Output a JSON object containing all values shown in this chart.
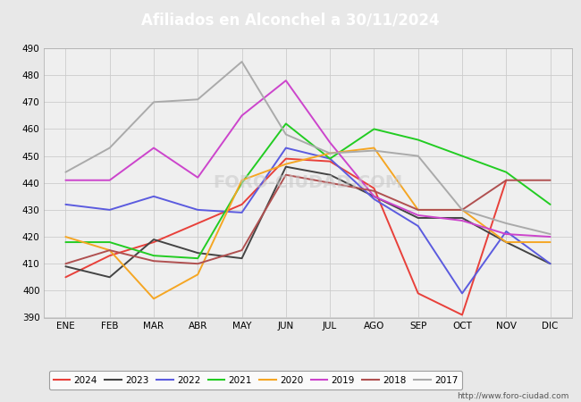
{
  "title": "Afiliados en Alconchel a 30/11/2024",
  "title_color": "white",
  "title_bg_color": "#5b7fc4",
  "xlabel": "",
  "ylabel": "",
  "ylim": [
    390,
    490
  ],
  "yticks": [
    390,
    400,
    410,
    420,
    430,
    440,
    450,
    460,
    470,
    480,
    490
  ],
  "months": [
    "ENE",
    "FEB",
    "MAR",
    "ABR",
    "MAY",
    "JUN",
    "JUL",
    "AGO",
    "SEP",
    "OCT",
    "NOV",
    "DIC"
  ],
  "footer": "http://www.foro-ciudad.com",
  "series": {
    "2024": {
      "color": "#e8403a",
      "linewidth": 1.4,
      "values": [
        405,
        413,
        418,
        425,
        432,
        449,
        448,
        438,
        399,
        391,
        441,
        null
      ]
    },
    "2023": {
      "color": "#444444",
      "linewidth": 1.4,
      "values": [
        409,
        405,
        419,
        414,
        412,
        446,
        443,
        435,
        427,
        427,
        418,
        410
      ]
    },
    "2022": {
      "color": "#5b5bdf",
      "linewidth": 1.4,
      "values": [
        432,
        430,
        435,
        430,
        429,
        453,
        449,
        434,
        424,
        399,
        422,
        410
      ]
    },
    "2021": {
      "color": "#22cc22",
      "linewidth": 1.4,
      "values": [
        418,
        418,
        413,
        412,
        440,
        462,
        449,
        460,
        456,
        450,
        444,
        432
      ]
    },
    "2020": {
      "color": "#f5a623",
      "linewidth": 1.4,
      "values": [
        420,
        415,
        397,
        406,
        441,
        447,
        451,
        453,
        430,
        430,
        418,
        418
      ]
    },
    "2019": {
      "color": "#cc44cc",
      "linewidth": 1.4,
      "values": [
        441,
        441,
        453,
        442,
        465,
        478,
        455,
        435,
        428,
        426,
        421,
        420
      ]
    },
    "2018": {
      "color": "#b05050",
      "linewidth": 1.4,
      "values": [
        410,
        415,
        411,
        410,
        415,
        443,
        440,
        437,
        430,
        430,
        441,
        441
      ]
    },
    "2017": {
      "color": "#aaaaaa",
      "linewidth": 1.4,
      "values": [
        444,
        453,
        470,
        471,
        485,
        458,
        451,
        452,
        450,
        430,
        425,
        421
      ]
    }
  },
  "legend_order": [
    "2024",
    "2023",
    "2022",
    "2021",
    "2020",
    "2019",
    "2018",
    "2017"
  ],
  "grid_color": "#cccccc",
  "bg_color": "#e8e8e8",
  "plot_bg_color": "#efefef"
}
